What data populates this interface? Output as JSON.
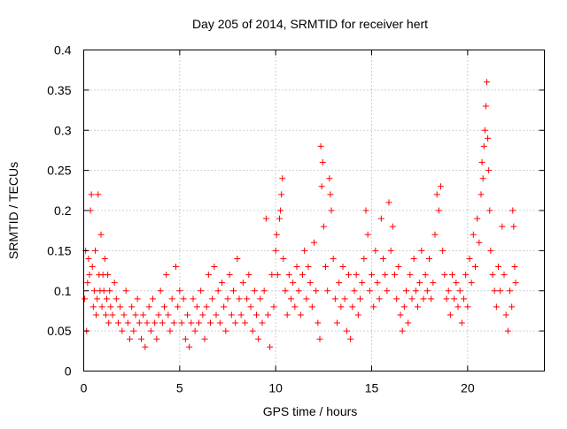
{
  "chart_data": {
    "type": "scatter",
    "title": "Day 205 of 2014, SRMTID for receiver hert",
    "xlabel": "GPS time / hours",
    "ylabel": "SRMTID / TECUs",
    "xlim": [
      0,
      24
    ],
    "ylim": [
      0,
      0.4
    ],
    "xticks": [
      0,
      5,
      10,
      15,
      20
    ],
    "xtick_labels": [
      "0",
      "5",
      "10",
      "15",
      "20"
    ],
    "yticks": [
      0,
      0.05,
      0.1,
      0.15,
      0.2,
      0.25,
      0.3,
      0.35,
      0.4
    ],
    "ytick_labels": [
      "0",
      "0.05",
      "0.1",
      "0.15",
      "0.2",
      "0.25",
      "0.3",
      "0.35",
      "0.4"
    ],
    "grid": true,
    "marker": "+",
    "point_color": "#ff0000",
    "series": [
      {
        "name": "SRMTID",
        "points": [
          [
            0.05,
            0.09
          ],
          [
            0.1,
            0.15
          ],
          [
            0.15,
            0.05
          ],
          [
            0.2,
            0.11
          ],
          [
            0.25,
            0.14
          ],
          [
            0.3,
            0.12
          ],
          [
            0.35,
            0.2
          ],
          [
            0.4,
            0.22
          ],
          [
            0.45,
            0.13
          ],
          [
            0.5,
            0.08
          ],
          [
            0.55,
            0.1
          ],
          [
            0.6,
            0.15
          ],
          [
            0.65,
            0.07
          ],
          [
            0.7,
            0.09
          ],
          [
            0.75,
            0.22
          ],
          [
            0.8,
            0.12
          ],
          [
            0.85,
            0.1
          ],
          [
            0.9,
            0.17
          ],
          [
            0.95,
            0.08
          ],
          [
            1.0,
            0.12
          ],
          [
            1.05,
            0.1
          ],
          [
            1.1,
            0.14
          ],
          [
            1.15,
            0.07
          ],
          [
            1.2,
            0.09
          ],
          [
            1.25,
            0.12
          ],
          [
            1.3,
            0.06
          ],
          [
            1.35,
            0.1
          ],
          [
            1.4,
            0.08
          ],
          [
            1.5,
            0.07
          ],
          [
            1.6,
            0.11
          ],
          [
            1.7,
            0.09
          ],
          [
            1.8,
            0.06
          ],
          [
            1.9,
            0.08
          ],
          [
            2.0,
            0.05
          ],
          [
            2.1,
            0.07
          ],
          [
            2.2,
            0.1
          ],
          [
            2.3,
            0.06
          ],
          [
            2.4,
            0.04
          ],
          [
            2.5,
            0.08
          ],
          [
            2.6,
            0.05
          ],
          [
            2.7,
            0.07
          ],
          [
            2.8,
            0.09
          ],
          [
            2.9,
            0.06
          ],
          [
            3.0,
            0.04
          ],
          [
            3.1,
            0.07
          ],
          [
            3.2,
            0.03
          ],
          [
            3.3,
            0.06
          ],
          [
            3.4,
            0.08
          ],
          [
            3.5,
            0.05
          ],
          [
            3.6,
            0.09
          ],
          [
            3.7,
            0.06
          ],
          [
            3.8,
            0.04
          ],
          [
            3.9,
            0.07
          ],
          [
            4.0,
            0.1
          ],
          [
            4.1,
            0.06
          ],
          [
            4.2,
            0.08
          ],
          [
            4.3,
            0.12
          ],
          [
            4.4,
            0.07
          ],
          [
            4.5,
            0.05
          ],
          [
            4.6,
            0.09
          ],
          [
            4.7,
            0.06
          ],
          [
            4.8,
            0.13
          ],
          [
            4.9,
            0.08
          ],
          [
            5.0,
            0.1
          ],
          [
            5.1,
            0.06
          ],
          [
            5.2,
            0.09
          ],
          [
            5.3,
            0.04
          ],
          [
            5.4,
            0.07
          ],
          [
            5.5,
            0.03
          ],
          [
            5.6,
            0.06
          ],
          [
            5.7,
            0.09
          ],
          [
            5.8,
            0.05
          ],
          [
            5.9,
            0.08
          ],
          [
            6.0,
            0.06
          ],
          [
            6.1,
            0.1
          ],
          [
            6.2,
            0.07
          ],
          [
            6.3,
            0.04
          ],
          [
            6.4,
            0.08
          ],
          [
            6.5,
            0.12
          ],
          [
            6.6,
            0.06
          ],
          [
            6.7,
            0.09
          ],
          [
            6.8,
            0.13
          ],
          [
            6.9,
            0.07
          ],
          [
            7.0,
            0.1
          ],
          [
            7.1,
            0.06
          ],
          [
            7.2,
            0.11
          ],
          [
            7.3,
            0.08
          ],
          [
            7.4,
            0.05
          ],
          [
            7.5,
            0.09
          ],
          [
            7.6,
            0.12
          ],
          [
            7.7,
            0.07
          ],
          [
            7.8,
            0.1
          ],
          [
            7.9,
            0.06
          ],
          [
            8.0,
            0.14
          ],
          [
            8.1,
            0.09
          ],
          [
            8.2,
            0.07
          ],
          [
            8.3,
            0.11
          ],
          [
            8.4,
            0.06
          ],
          [
            8.5,
            0.09
          ],
          [
            8.6,
            0.12
          ],
          [
            8.7,
            0.08
          ],
          [
            8.8,
            0.05
          ],
          [
            8.9,
            0.1
          ],
          [
            9.0,
            0.07
          ],
          [
            9.1,
            0.04
          ],
          [
            9.2,
            0.09
          ],
          [
            9.3,
            0.06
          ],
          [
            9.4,
            0.1
          ],
          [
            9.5,
            0.19
          ],
          [
            9.6,
            0.07
          ],
          [
            9.7,
            0.03
          ],
          [
            9.8,
            0.12
          ],
          [
            9.9,
            0.08
          ],
          [
            10.0,
            0.15
          ],
          [
            10.05,
            0.17
          ],
          [
            10.1,
            0.12
          ],
          [
            10.2,
            0.19
          ],
          [
            10.25,
            0.2
          ],
          [
            10.3,
            0.22
          ],
          [
            10.35,
            0.24
          ],
          [
            10.4,
            0.14
          ],
          [
            10.5,
            0.1
          ],
          [
            10.6,
            0.07
          ],
          [
            10.7,
            0.12
          ],
          [
            10.8,
            0.09
          ],
          [
            10.9,
            0.11
          ],
          [
            11.0,
            0.08
          ],
          [
            11.1,
            0.13
          ],
          [
            11.2,
            0.1
          ],
          [
            11.3,
            0.07
          ],
          [
            11.4,
            0.12
          ],
          [
            11.5,
            0.15
          ],
          [
            11.6,
            0.09
          ],
          [
            11.7,
            0.13
          ],
          [
            11.8,
            0.11
          ],
          [
            11.9,
            0.08
          ],
          [
            12.0,
            0.16
          ],
          [
            12.1,
            0.1
          ],
          [
            12.2,
            0.06
          ],
          [
            12.3,
            0.04
          ],
          [
            12.35,
            0.28
          ],
          [
            12.4,
            0.23
          ],
          [
            12.45,
            0.26
          ],
          [
            12.5,
            0.18
          ],
          [
            12.6,
            0.13
          ],
          [
            12.7,
            0.1
          ],
          [
            12.8,
            0.24
          ],
          [
            12.85,
            0.22
          ],
          [
            12.9,
            0.2
          ],
          [
            13.0,
            0.14
          ],
          [
            13.1,
            0.09
          ],
          [
            13.2,
            0.06
          ],
          [
            13.3,
            0.11
          ],
          [
            13.4,
            0.08
          ],
          [
            13.5,
            0.13
          ],
          [
            13.6,
            0.09
          ],
          [
            13.7,
            0.05
          ],
          [
            13.8,
            0.12
          ],
          [
            13.9,
            0.04
          ],
          [
            14.0,
            0.08
          ],
          [
            14.1,
            0.1
          ],
          [
            14.2,
            0.12
          ],
          [
            14.3,
            0.07
          ],
          [
            14.4,
            0.09
          ],
          [
            14.5,
            0.11
          ],
          [
            14.6,
            0.14
          ],
          [
            14.7,
            0.2
          ],
          [
            14.8,
            0.17
          ],
          [
            14.9,
            0.1
          ],
          [
            15.0,
            0.12
          ],
          [
            15.1,
            0.08
          ],
          [
            15.2,
            0.15
          ],
          [
            15.3,
            0.11
          ],
          [
            15.4,
            0.09
          ],
          [
            15.5,
            0.19
          ],
          [
            15.6,
            0.14
          ],
          [
            15.7,
            0.12
          ],
          [
            15.8,
            0.1
          ],
          [
            15.9,
            0.21
          ],
          [
            16.0,
            0.15
          ],
          [
            16.1,
            0.18
          ],
          [
            16.2,
            0.12
          ],
          [
            16.3,
            0.09
          ],
          [
            16.4,
            0.13
          ],
          [
            16.5,
            0.07
          ],
          [
            16.6,
            0.05
          ],
          [
            16.7,
            0.08
          ],
          [
            16.8,
            0.1
          ],
          [
            16.9,
            0.06
          ],
          [
            17.0,
            0.12
          ],
          [
            17.1,
            0.09
          ],
          [
            17.2,
            0.14
          ],
          [
            17.3,
            0.1
          ],
          [
            17.4,
            0.08
          ],
          [
            17.5,
            0.11
          ],
          [
            17.6,
            0.15
          ],
          [
            17.7,
            0.09
          ],
          [
            17.8,
            0.12
          ],
          [
            17.9,
            0.1
          ],
          [
            18.0,
            0.14
          ],
          [
            18.1,
            0.09
          ],
          [
            18.2,
            0.11
          ],
          [
            18.3,
            0.17
          ],
          [
            18.4,
            0.22
          ],
          [
            18.5,
            0.2
          ],
          [
            18.6,
            0.23
          ],
          [
            18.7,
            0.15
          ],
          [
            18.8,
            0.12
          ],
          [
            18.9,
            0.09
          ],
          [
            19.0,
            0.1
          ],
          [
            19.1,
            0.07
          ],
          [
            19.2,
            0.12
          ],
          [
            19.3,
            0.09
          ],
          [
            19.4,
            0.11
          ],
          [
            19.5,
            0.08
          ],
          [
            19.6,
            0.1
          ],
          [
            19.7,
            0.06
          ],
          [
            19.8,
            0.09
          ],
          [
            19.9,
            0.12
          ],
          [
            20.0,
            0.08
          ],
          [
            20.1,
            0.14
          ],
          [
            20.2,
            0.11
          ],
          [
            20.3,
            0.17
          ],
          [
            20.4,
            0.13
          ],
          [
            20.5,
            0.19
          ],
          [
            20.6,
            0.16
          ],
          [
            20.7,
            0.22
          ],
          [
            20.75,
            0.26
          ],
          [
            20.8,
            0.24
          ],
          [
            20.85,
            0.28
          ],
          [
            20.9,
            0.3
          ],
          [
            20.95,
            0.33
          ],
          [
            21.0,
            0.36
          ],
          [
            21.05,
            0.29
          ],
          [
            21.1,
            0.25
          ],
          [
            21.15,
            0.2
          ],
          [
            21.2,
            0.15
          ],
          [
            21.3,
            0.12
          ],
          [
            21.4,
            0.1
          ],
          [
            21.5,
            0.08
          ],
          [
            21.6,
            0.13
          ],
          [
            21.7,
            0.1
          ],
          [
            21.8,
            0.18
          ],
          [
            21.9,
            0.12
          ],
          [
            22.0,
            0.07
          ],
          [
            22.1,
            0.05
          ],
          [
            22.2,
            0.1
          ],
          [
            22.3,
            0.08
          ],
          [
            22.35,
            0.2
          ],
          [
            22.4,
            0.18
          ],
          [
            22.45,
            0.13
          ],
          [
            22.5,
            0.11
          ]
        ]
      }
    ]
  }
}
